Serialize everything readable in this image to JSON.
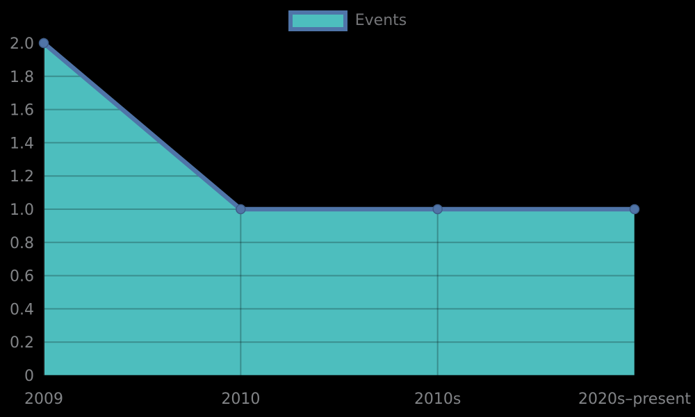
{
  "chart_data": {
    "type": "area",
    "title": "",
    "xlabel": "",
    "ylabel": "",
    "categories": [
      "2009",
      "2010",
      "2010s",
      "2020s–present"
    ],
    "series": [
      {
        "name": "Events",
        "values": [
          2,
          1,
          1,
          1
        ]
      }
    ],
    "ylim": [
      0,
      2
    ],
    "ytick_step": 0.2,
    "yticks": [
      {
        "value": 0,
        "label": "0"
      },
      {
        "value": 0.2,
        "label": "0.2"
      },
      {
        "value": 0.4,
        "label": "0.4"
      },
      {
        "value": 0.6,
        "label": "0.6"
      },
      {
        "value": 0.8,
        "label": "0.8"
      },
      {
        "value": 1.0,
        "label": "1.0"
      },
      {
        "value": 1.2,
        "label": "1.2"
      },
      {
        "value": 1.4,
        "label": "1.4"
      },
      {
        "value": 1.6,
        "label": "1.6"
      },
      {
        "value": 1.8,
        "label": "1.8"
      },
      {
        "value": 2.0,
        "label": "2.0"
      }
    ],
    "grid": true,
    "legend": {
      "label": "Events",
      "position": "top-center",
      "marker": "rect"
    },
    "markers": true,
    "colors": {
      "fill": "#4DBEBE",
      "line": "#4F74A8",
      "marker": "#5074A7",
      "marker_edge": "#3E5C88",
      "grid": "rgba(0,0,0,0.25)",
      "tick_text": "#828487",
      "legend_text": "#737477",
      "background": "#000000",
      "axis": "#161616"
    }
  }
}
